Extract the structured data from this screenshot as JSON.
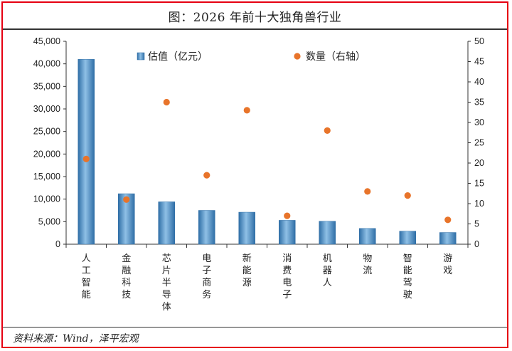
{
  "title": "图：2026 年前十大独角兽行业",
  "source": "资料来源：Wind，泽平宏观",
  "chart_data": {
    "type": "bar+scatter",
    "categories": [
      "人工智能",
      "金融科技",
      "芯片半导体",
      "电子商务",
      "新能源",
      "消费电子",
      "机器人",
      "物流",
      "智能驾驶",
      "游戏"
    ],
    "series": [
      {
        "name": "估值（亿元）",
        "type": "bar",
        "axis": "left",
        "values": [
          41000,
          11200,
          9400,
          7500,
          7100,
          5300,
          5100,
          3500,
          2900,
          2600
        ]
      },
      {
        "name": "数量（右轴）",
        "type": "scatter",
        "axis": "right",
        "values": [
          21,
          11,
          35,
          17,
          33,
          7,
          28,
          13,
          12,
          6
        ]
      }
    ],
    "y_left": {
      "range": [
        0,
        45000
      ],
      "ticks": [
        "0",
        "5,000",
        "10,000",
        "15,000",
        "20,000",
        "25,000",
        "30,000",
        "35,000",
        "40,000",
        "45,000"
      ]
    },
    "y_right": {
      "range": [
        0,
        50
      ],
      "ticks": [
        "0",
        "5",
        "10",
        "15",
        "20",
        "25",
        "30",
        "35",
        "40",
        "45",
        "50"
      ]
    },
    "legend_position": "top",
    "colors": {
      "bar": "#4a8cc4",
      "bar_dark": "#2f6ea6",
      "bar_light": "#8fc0e6",
      "dot": "#e8742a"
    }
  }
}
